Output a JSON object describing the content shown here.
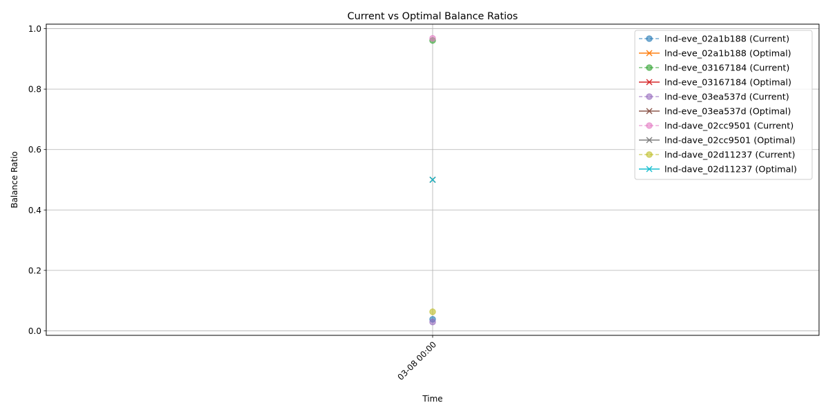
{
  "chart_data": {
    "type": "line",
    "title": "Current vs Optimal Balance Ratios",
    "xlabel": "Time",
    "ylabel": "Balance Ratio",
    "x_ticks": [
      "03-08 00:00"
    ],
    "ylim": [
      -0.015,
      1.015
    ],
    "y_ticks": [
      "0.0",
      "0.2",
      "0.4",
      "0.6",
      "0.8",
      "1.0"
    ],
    "grid": true,
    "legend_position": "top-right",
    "series": [
      {
        "name": "lnd-eve_02a1b188 (Current)",
        "kind": "current",
        "color": "#1f77b4",
        "x": [
          "03-08 00:00"
        ],
        "values": [
          0.038
        ]
      },
      {
        "name": "lnd-eve_02a1b188 (Optimal)",
        "kind": "optimal",
        "color": "#ff7f0e",
        "x": [
          "03-08 00:00"
        ],
        "values": [
          0.5
        ]
      },
      {
        "name": "lnd-eve_03167184 (Current)",
        "kind": "current",
        "color": "#2ca02c",
        "x": [
          "03-08 00:00"
        ],
        "values": [
          0.961
        ]
      },
      {
        "name": "lnd-eve_03167184 (Optimal)",
        "kind": "optimal",
        "color": "#d62728",
        "x": [
          "03-08 00:00"
        ],
        "values": [
          0.5
        ]
      },
      {
        "name": "lnd-eve_03ea537d (Current)",
        "kind": "current",
        "color": "#9467bd",
        "x": [
          "03-08 00:00"
        ],
        "values": [
          0.029
        ]
      },
      {
        "name": "lnd-eve_03ea537d (Optimal)",
        "kind": "optimal",
        "color": "#8c564b",
        "x": [
          "03-08 00:00"
        ],
        "values": [
          0.5
        ]
      },
      {
        "name": "lnd-dave_02cc9501 (Current)",
        "kind": "current",
        "color": "#e377c2",
        "x": [
          "03-08 00:00"
        ],
        "values": [
          0.968
        ]
      },
      {
        "name": "lnd-dave_02cc9501 (Optimal)",
        "kind": "optimal",
        "color": "#7f7f7f",
        "x": [
          "03-08 00:00"
        ],
        "values": [
          0.5
        ]
      },
      {
        "name": "lnd-dave_02d11237 (Current)",
        "kind": "current",
        "color": "#bcbd22",
        "x": [
          "03-08 00:00"
        ],
        "values": [
          0.063
        ]
      },
      {
        "name": "lnd-dave_02d11237 (Optimal)",
        "kind": "optimal",
        "color": "#17becf",
        "x": [
          "03-08 00:00"
        ],
        "values": [
          0.5
        ]
      }
    ]
  }
}
